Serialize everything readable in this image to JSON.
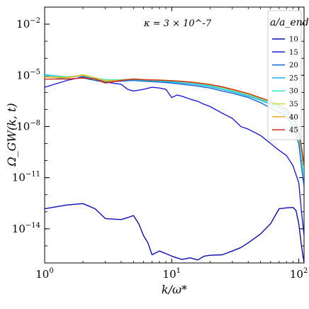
{
  "chart_data": {
    "type": "line",
    "x_scale": "log",
    "y_scale": "log",
    "xlim": [
      1,
      110
    ],
    "ylim": [
      1e-16,
      0.1
    ],
    "xlabel": "k/ω*",
    "ylabel": "Ω_GW(k, t)",
    "annotation": "κ = 3 × 10^-7",
    "legend_title": "a/a_end",
    "legend_position": "top-right",
    "x_ticks": [
      {
        "value": 1,
        "base": "10",
        "exp": "0"
      },
      {
        "value": 10,
        "base": "10",
        "exp": "1"
      },
      {
        "value": 100,
        "base": "10",
        "exp": "2"
      }
    ],
    "y_ticks": [
      {
        "value": 0.01,
        "base": "10",
        "exp": "−2"
      },
      {
        "value": 1e-05,
        "base": "10",
        "exp": "−5"
      },
      {
        "value": 1e-08,
        "base": "10",
        "exp": "−8"
      },
      {
        "value": 1e-11,
        "base": "10",
        "exp": "−11"
      },
      {
        "value": 1e-14,
        "base": "10",
        "exp": "−14"
      }
    ],
    "series": [
      {
        "name": "10",
        "color": "#0b0bb4",
        "points": [
          [
            1,
            1.5e-13
          ],
          [
            1.5,
            2.5e-13
          ],
          [
            2,
            3e-13
          ],
          [
            2.5,
            1.5e-13
          ],
          [
            3,
            4e-14
          ],
          [
            3.5,
            3.7e-14
          ],
          [
            4,
            3.5e-14
          ],
          [
            4.5,
            4.5e-14
          ],
          [
            5,
            6e-14
          ],
          [
            5.5,
            2e-14
          ],
          [
            6,
            4e-15
          ],
          [
            6.5,
            1.5e-15
          ],
          [
            7,
            3e-16
          ],
          [
            8,
            5e-16
          ],
          [
            9,
            3.5e-16
          ],
          [
            10,
            2.5e-16
          ],
          [
            12,
            1.6e-16
          ],
          [
            14,
            2e-16
          ],
          [
            16,
            1.5e-16
          ],
          [
            18,
            2.5e-16
          ],
          [
            20,
            2.8e-16
          ],
          [
            25,
            3e-16
          ],
          [
            30,
            5e-16
          ],
          [
            35,
            8e-16
          ],
          [
            40,
            1.5e-15
          ],
          [
            50,
            5e-15
          ],
          [
            60,
            2e-14
          ],
          [
            70,
            1.5e-13
          ],
          [
            80,
            1.7e-13
          ],
          [
            90,
            1.8e-13
          ],
          [
            95,
            1.2e-13
          ],
          [
            100,
            2e-14
          ],
          [
            105,
            1e-15
          ],
          [
            110,
            1e-16
          ]
        ]
      },
      {
        "name": "15",
        "color": "#1e1ed8",
        "points": [
          [
            1,
            2e-06
          ],
          [
            1.5,
            5e-06
          ],
          [
            2,
            8e-06
          ],
          [
            2.5,
            6e-06
          ],
          [
            3,
            4e-06
          ],
          [
            4,
            3e-06
          ],
          [
            4.5,
            1.5e-06
          ],
          [
            5,
            1.2e-06
          ],
          [
            6,
            1.5e-06
          ],
          [
            7,
            2e-06
          ],
          [
            8,
            1.8e-06
          ],
          [
            9,
            1.5e-06
          ],
          [
            10,
            5e-07
          ],
          [
            11,
            7e-07
          ],
          [
            12,
            6e-07
          ],
          [
            14,
            4e-07
          ],
          [
            16,
            3e-07
          ],
          [
            18,
            2e-07
          ],
          [
            20,
            1.5e-07
          ],
          [
            25,
            6e-08
          ],
          [
            30,
            3e-08
          ],
          [
            35,
            1e-08
          ],
          [
            40,
            7e-09
          ],
          [
            50,
            3e-09
          ],
          [
            60,
            1e-09
          ],
          [
            70,
            4e-10
          ],
          [
            80,
            2e-10
          ],
          [
            90,
            5e-11
          ],
          [
            100,
            5e-12
          ],
          [
            105,
            1e-13
          ],
          [
            110,
            4e-15
          ]
        ]
      },
      {
        "name": "20",
        "color": "#1464d2",
        "points": [
          [
            1,
            9e-06
          ],
          [
            1.5,
            6e-06
          ],
          [
            2,
            7e-06
          ],
          [
            2.5,
            5e-06
          ],
          [
            3,
            4e-06
          ],
          [
            4,
            4.5e-06
          ],
          [
            5,
            5e-06
          ],
          [
            6,
            4.5e-06
          ],
          [
            8,
            4e-06
          ],
          [
            10,
            3.5e-06
          ],
          [
            12,
            3e-06
          ],
          [
            15,
            2.5e-06
          ],
          [
            20,
            1.8e-06
          ],
          [
            25,
            1.2e-06
          ],
          [
            30,
            9e-07
          ],
          [
            40,
            5e-07
          ],
          [
            50,
            2.5e-07
          ],
          [
            60,
            1.2e-07
          ],
          [
            70,
            7e-08
          ],
          [
            80,
            4e-08
          ],
          [
            90,
            1e-08
          ],
          [
            100,
            1e-09
          ],
          [
            105,
            4e-11
          ],
          [
            110,
            3e-12
          ]
        ]
      },
      {
        "name": "25",
        "color": "#14b4e6",
        "points": [
          [
            1,
            1.1e-05
          ],
          [
            1.5,
            8e-06
          ],
          [
            2,
            9e-06
          ],
          [
            2.5,
            6e-06
          ],
          [
            3,
            5e-06
          ],
          [
            4,
            5e-06
          ],
          [
            5,
            5.5e-06
          ],
          [
            6,
            5e-06
          ],
          [
            8,
            4.5e-06
          ],
          [
            10,
            4e-06
          ],
          [
            12,
            3.5e-06
          ],
          [
            15,
            3e-06
          ],
          [
            20,
            2.2e-06
          ],
          [
            25,
            1.5e-06
          ],
          [
            30,
            1.1e-06
          ],
          [
            40,
            6e-07
          ],
          [
            50,
            3.5e-07
          ],
          [
            60,
            2e-07
          ],
          [
            70,
            1.2e-07
          ],
          [
            80,
            6e-08
          ],
          [
            90,
            2e-08
          ],
          [
            100,
            3e-09
          ],
          [
            105,
            2e-10
          ],
          [
            110,
            1e-11
          ]
        ]
      },
      {
        "name": "30",
        "color": "#3ce6c8",
        "points": [
          [
            1,
            1e-05
          ],
          [
            1.5,
            8e-06
          ],
          [
            2,
            1e-05
          ],
          [
            2.5,
            7e-06
          ],
          [
            3,
            5.5e-06
          ],
          [
            4,
            5.5e-06
          ],
          [
            5,
            6e-06
          ],
          [
            6,
            5.5e-06
          ],
          [
            8,
            5e-06
          ],
          [
            10,
            4.5e-06
          ],
          [
            12,
            4e-06
          ],
          [
            15,
            3.5e-06
          ],
          [
            20,
            2.5e-06
          ],
          [
            25,
            1.8e-06
          ],
          [
            30,
            1.3e-06
          ],
          [
            40,
            7e-07
          ],
          [
            50,
            4e-07
          ],
          [
            60,
            2.5e-07
          ],
          [
            70,
            1.5e-07
          ],
          [
            80,
            8e-08
          ],
          [
            90,
            3e-08
          ],
          [
            100,
            5e-09
          ],
          [
            105,
            3e-10
          ],
          [
            110,
            2e-11
          ]
        ]
      },
      {
        "name": "35",
        "color": "#b4e63c",
        "points": [
          [
            1,
            8e-06
          ],
          [
            1.5,
            7e-06
          ],
          [
            2,
            1.1e-05
          ],
          [
            2.5,
            7e-06
          ],
          [
            3,
            5e-06
          ],
          [
            4,
            5e-06
          ],
          [
            5,
            6e-06
          ],
          [
            6,
            5.5e-06
          ],
          [
            8,
            5.2e-06
          ],
          [
            10,
            4.8e-06
          ],
          [
            12,
            4.3e-06
          ],
          [
            15,
            3.8e-06
          ],
          [
            20,
            2.8e-06
          ],
          [
            25,
            2e-06
          ],
          [
            30,
            1.4e-06
          ],
          [
            40,
            8e-07
          ],
          [
            50,
            4.5e-07
          ],
          [
            60,
            2.8e-07
          ],
          [
            70,
            1.7e-07
          ],
          [
            80,
            9e-08
          ],
          [
            90,
            3.5e-08
          ],
          [
            100,
            6e-09
          ],
          [
            105,
            5e-10
          ],
          [
            110,
            4e-11
          ]
        ]
      },
      {
        "name": "40",
        "color": "#f0aa1e",
        "points": [
          [
            1,
            8e-06
          ],
          [
            1.5,
            7.5e-06
          ],
          [
            2,
            1e-05
          ],
          [
            2.5,
            7e-06
          ],
          [
            3,
            4.5e-06
          ],
          [
            4,
            5.2e-06
          ],
          [
            5,
            6.2e-06
          ],
          [
            6,
            5.6e-06
          ],
          [
            8,
            5.3e-06
          ],
          [
            10,
            4.9e-06
          ],
          [
            12,
            4.4e-06
          ],
          [
            15,
            3.9e-06
          ],
          [
            20,
            2.9e-06
          ],
          [
            25,
            2.1e-06
          ],
          [
            30,
            1.5e-06
          ],
          [
            40,
            8.5e-07
          ],
          [
            50,
            4.8e-07
          ],
          [
            60,
            3e-07
          ],
          [
            70,
            1.8e-07
          ],
          [
            80,
            1e-07
          ],
          [
            90,
            4e-08
          ],
          [
            100,
            7e-09
          ],
          [
            105,
            6e-10
          ],
          [
            110,
            5e-11
          ]
        ]
      },
      {
        "name": "45",
        "color": "#d22814",
        "points": [
          [
            1,
            6e-06
          ],
          [
            1.5,
            6e-06
          ],
          [
            2,
            7e-06
          ],
          [
            2.5,
            6e-06
          ],
          [
            3,
            3.5e-06
          ],
          [
            4,
            5e-06
          ],
          [
            5,
            6e-06
          ],
          [
            6,
            5.5e-06
          ],
          [
            8,
            5.2e-06
          ],
          [
            10,
            4.8e-06
          ],
          [
            12,
            4.4e-06
          ],
          [
            15,
            3.8e-06
          ],
          [
            20,
            2.9e-06
          ],
          [
            25,
            2.1e-06
          ],
          [
            30,
            1.5e-06
          ],
          [
            40,
            8.5e-07
          ],
          [
            50,
            4.8e-07
          ],
          [
            60,
            3e-07
          ],
          [
            70,
            1.8e-07
          ],
          [
            80,
            1e-07
          ],
          [
            90,
            4e-08
          ],
          [
            100,
            7e-09
          ],
          [
            105,
            6e-10
          ],
          [
            110,
            5e-11
          ]
        ]
      }
    ]
  }
}
